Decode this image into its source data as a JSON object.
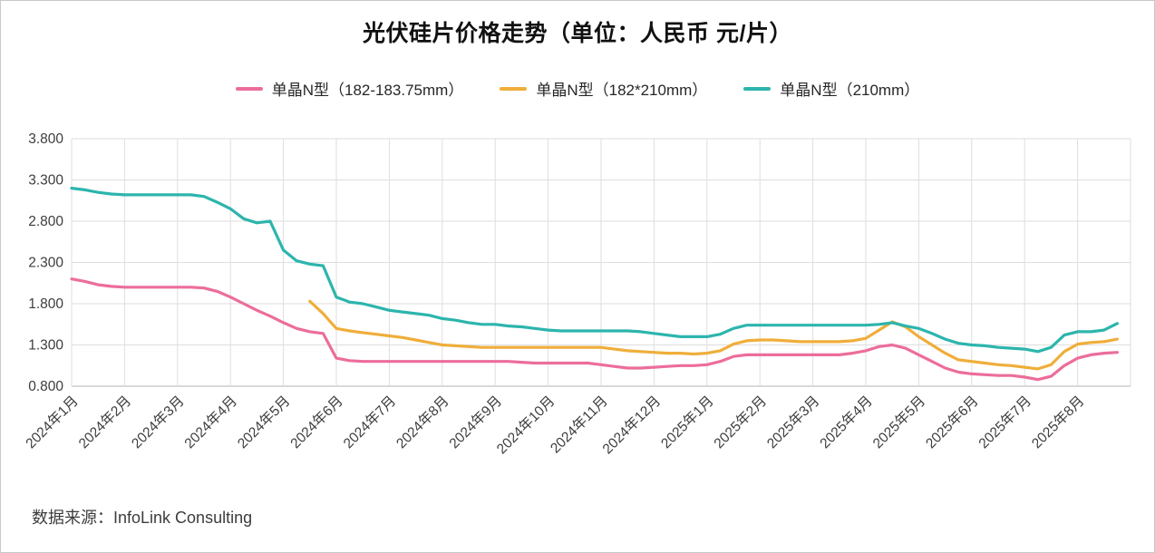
{
  "title": "光伏硅片价格走势（单位：人民币 元/片）",
  "source": "数据来源：InfoLink Consulting",
  "chart_data": {
    "type": "line",
    "title": "光伏硅片价格走势（单位：人民币 元/片）",
    "xlabel": "",
    "ylabel": "",
    "ylim": [
      0.8,
      3.8
    ],
    "yticks": [
      0.8,
      1.3,
      1.8,
      2.3,
      2.8,
      3.3,
      3.8
    ],
    "grid": true,
    "legend_position": "top",
    "points_per_month": 4,
    "categories": [
      "2024年1月",
      "2024年2月",
      "2024年3月",
      "2024年4月",
      "2024年5月",
      "2024年6月",
      "2024年7月",
      "2024年8月",
      "2024年9月",
      "2024年10月",
      "2024年11月",
      "2024年12月",
      "2025年1月",
      "2025年2月",
      "2025年3月",
      "2025年4月",
      "2025年5月",
      "2025年6月",
      "2025年7月",
      "2025年8月"
    ],
    "series": [
      {
        "name": "单晶N型（182-183.75mm）",
        "color": "#ec6d9b",
        "values": [
          2.1,
          2.07,
          2.03,
          2.01,
          2.0,
          2.0,
          2.0,
          2.0,
          2.0,
          2.0,
          1.99,
          1.95,
          1.88,
          1.8,
          1.72,
          1.65,
          1.57,
          1.5,
          1.46,
          1.44,
          1.14,
          1.11,
          1.1,
          1.1,
          1.1,
          1.1,
          1.1,
          1.1,
          1.1,
          1.1,
          1.1,
          1.1,
          1.1,
          1.1,
          1.09,
          1.08,
          1.08,
          1.08,
          1.08,
          1.08,
          1.06,
          1.04,
          1.02,
          1.02,
          1.03,
          1.04,
          1.05,
          1.05,
          1.06,
          1.1,
          1.16,
          1.18,
          1.18,
          1.18,
          1.18,
          1.18,
          1.18,
          1.18,
          1.18,
          1.2,
          1.23,
          1.28,
          1.3,
          1.26,
          1.18,
          1.1,
          1.02,
          0.97,
          0.95,
          0.94,
          0.93,
          0.93,
          0.91,
          0.88,
          0.92,
          1.05,
          1.14,
          1.18,
          1.2,
          1.21
        ]
      },
      {
        "name": "单晶N型（182*210mm）",
        "color": "#efae3a",
        "values": [
          null,
          null,
          null,
          null,
          null,
          null,
          null,
          null,
          null,
          null,
          null,
          null,
          null,
          null,
          null,
          null,
          null,
          null,
          1.83,
          1.68,
          1.5,
          1.47,
          1.45,
          1.43,
          1.41,
          1.39,
          1.36,
          1.33,
          1.3,
          1.29,
          1.28,
          1.27,
          1.27,
          1.27,
          1.27,
          1.27,
          1.27,
          1.27,
          1.27,
          1.27,
          1.27,
          1.25,
          1.23,
          1.22,
          1.21,
          1.2,
          1.2,
          1.19,
          1.2,
          1.23,
          1.31,
          1.35,
          1.36,
          1.36,
          1.35,
          1.34,
          1.34,
          1.34,
          1.34,
          1.35,
          1.38,
          1.48,
          1.58,
          1.52,
          1.4,
          1.3,
          1.2,
          1.12,
          1.1,
          1.08,
          1.06,
          1.05,
          1.03,
          1.01,
          1.06,
          1.22,
          1.31,
          1.33,
          1.34,
          1.37
        ]
      },
      {
        "name": "单晶N型（210mm）",
        "color": "#2cb5ad",
        "values": [
          3.2,
          3.18,
          3.15,
          3.13,
          3.12,
          3.12,
          3.12,
          3.12,
          3.12,
          3.12,
          3.1,
          3.03,
          2.95,
          2.83,
          2.78,
          2.8,
          2.45,
          2.32,
          2.28,
          2.26,
          1.88,
          1.82,
          1.8,
          1.76,
          1.72,
          1.7,
          1.68,
          1.66,
          1.62,
          1.6,
          1.57,
          1.55,
          1.55,
          1.53,
          1.52,
          1.5,
          1.48,
          1.47,
          1.47,
          1.47,
          1.47,
          1.47,
          1.47,
          1.46,
          1.44,
          1.42,
          1.4,
          1.4,
          1.4,
          1.43,
          1.5,
          1.54,
          1.54,
          1.54,
          1.54,
          1.54,
          1.54,
          1.54,
          1.54,
          1.54,
          1.54,
          1.55,
          1.57,
          1.53,
          1.5,
          1.44,
          1.37,
          1.32,
          1.3,
          1.29,
          1.27,
          1.26,
          1.25,
          1.22,
          1.27,
          1.42,
          1.46,
          1.46,
          1.48,
          1.56
        ]
      }
    ]
  }
}
